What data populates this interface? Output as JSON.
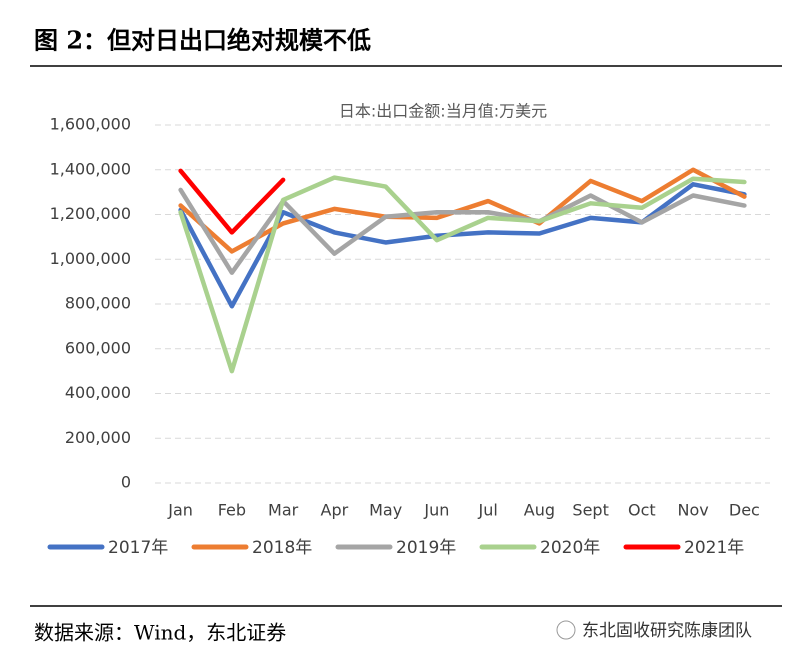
{
  "header": {
    "title": "图 2：但对日出口绝对规模不低"
  },
  "footer": {
    "source": "数据来源：Wind，东北证券",
    "watermark": "东北固收研究陈康团队"
  },
  "chart_data": {
    "type": "line",
    "title": "日本:出口金额:当月值:万美元",
    "categories": [
      "Jan",
      "Feb",
      "Mar",
      "Apr",
      "May",
      "Jun",
      "Jul",
      "Aug",
      "Sept",
      "Oct",
      "Nov",
      "Dec"
    ],
    "series": [
      {
        "name": "2017年",
        "color": "#4472c4",
        "values": [
          1220000,
          790000,
          1210000,
          1120000,
          1075000,
          1105000,
          1120000,
          1115000,
          1185000,
          1165000,
          1335000,
          1290000
        ]
      },
      {
        "name": "2018年",
        "color": "#ed7d31",
        "values": [
          1240000,
          1035000,
          1160000,
          1225000,
          1190000,
          1185000,
          1260000,
          1160000,
          1350000,
          1260000,
          1400000,
          1280000
        ]
      },
      {
        "name": "2019年",
        "color": "#a5a5a5",
        "values": [
          1310000,
          940000,
          1260000,
          1025000,
          1190000,
          1210000,
          1210000,
          1170000,
          1285000,
          1165000,
          1285000,
          1240000
        ]
      },
      {
        "name": "2020年",
        "color": "#a9d18e",
        "values": [
          1210000,
          500000,
          1265000,
          1365000,
          1325000,
          1085000,
          1185000,
          1170000,
          1250000,
          1230000,
          1360000,
          1345000
        ]
      },
      {
        "name": "2021年",
        "color": "#ff0000",
        "values": [
          1395000,
          1120000,
          1355000,
          null,
          null,
          null,
          null,
          null,
          null,
          null,
          null,
          null
        ]
      }
    ],
    "ylim": [
      0,
      1600000
    ],
    "yticks": [
      0,
      {
        "value": 200000,
        "label": "200,000"
      },
      {
        "value": 400000,
        "label": "400,000"
      },
      {
        "value": 600000,
        "label": "600,000"
      },
      {
        "value": 800000,
        "label": "800,000"
      },
      {
        "value": 1000000,
        "label": "1,000,000"
      },
      {
        "value": 1200000,
        "label": "1,200,000"
      },
      {
        "value": 1400000,
        "label": "1,400,000"
      },
      {
        "value": 1600000,
        "label": "1,600,000"
      }
    ],
    "grid": true,
    "legend": "bottom"
  }
}
